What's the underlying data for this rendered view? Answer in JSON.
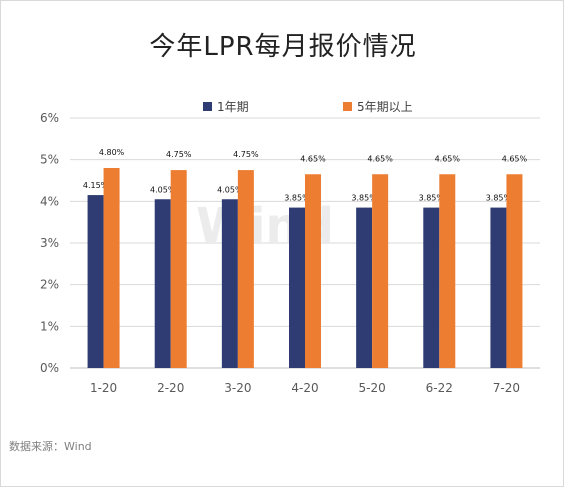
{
  "chart_data": {
    "type": "bar",
    "title": "今年LPR每月报价情况",
    "categories": [
      "1-20",
      "2-20",
      "3-20",
      "4-20",
      "5-20",
      "6-22",
      "7-20"
    ],
    "series": [
      {
        "name": "1年期",
        "values": [
          4.15,
          4.05,
          4.05,
          3.85,
          3.85,
          3.85,
          3.85
        ],
        "labels": [
          "4.15%",
          "4.05%",
          "4.05%",
          "3.85%",
          "3.85%",
          "3.85%",
          "3.85%"
        ],
        "color": "#2f3c73"
      },
      {
        "name": "5年期以上",
        "values": [
          4.8,
          4.75,
          4.75,
          4.65,
          4.65,
          4.65,
          4.65
        ],
        "labels": [
          "4.80%",
          "4.75%",
          "4.75%",
          "4.65%",
          "4.65%",
          "4.65%",
          "4.65%"
        ],
        "color": "#ed7d31"
      }
    ],
    "yticks": [
      "0%",
      "1%",
      "2%",
      "3%",
      "4%",
      "5%",
      "6%"
    ],
    "ylim": [
      0,
      6
    ],
    "grid": true,
    "legend_position": "top"
  },
  "watermark": "Wind",
  "source": "数据来源：Wind",
  "colors": {
    "grid": "#d9d9d9",
    "axis": "#bfbfbf",
    "watermark": "#ececec"
  }
}
